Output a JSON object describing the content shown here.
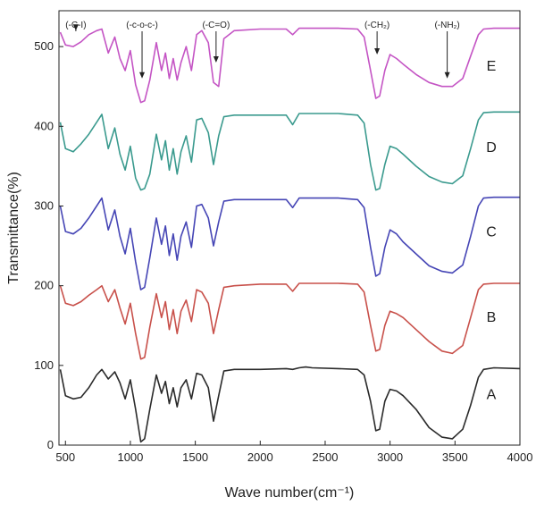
{
  "chart_data": {
    "type": "line",
    "xlabel": "Wave number(cm⁻¹)",
    "ylabel": "Transmittance(%)",
    "xlim": [
      450,
      4000
    ],
    "ylim": [
      0,
      545
    ],
    "x_ticks": [
      "500",
      "1000",
      "1500",
      "2000",
      "2500",
      "3000",
      "3500",
      "4000"
    ],
    "y_ticks": [
      "0",
      "100",
      "200",
      "300",
      "400",
      "500"
    ],
    "grid": false,
    "legend": "none",
    "annotations": [
      {
        "label": "(-C-I)",
        "x": 580,
        "y": 520
      },
      {
        "label": "(-c-o-c-)",
        "x": 1090,
        "y": 460
      },
      {
        "label": "(-C=O)",
        "x": 1660,
        "y": 480
      },
      {
        "label": "(-CH₂)",
        "x": 2900,
        "y": 490
      },
      {
        "label": "(-NH₂)",
        "x": 3440,
        "y": 460
      }
    ],
    "series": [
      {
        "name": "A",
        "color": "#2a2a2a",
        "label_x": 3780,
        "label_y": 58,
        "points": [
          [
            460,
            95
          ],
          [
            500,
            62
          ],
          [
            560,
            58
          ],
          [
            620,
            60
          ],
          [
            680,
            72
          ],
          [
            740,
            88
          ],
          [
            780,
            95
          ],
          [
            830,
            83
          ],
          [
            880,
            92
          ],
          [
            920,
            78
          ],
          [
            960,
            58
          ],
          [
            1000,
            82
          ],
          [
            1040,
            45
          ],
          [
            1080,
            4
          ],
          [
            1110,
            8
          ],
          [
            1150,
            45
          ],
          [
            1200,
            88
          ],
          [
            1240,
            65
          ],
          [
            1270,
            80
          ],
          [
            1300,
            52
          ],
          [
            1330,
            72
          ],
          [
            1360,
            48
          ],
          [
            1390,
            72
          ],
          [
            1430,
            82
          ],
          [
            1470,
            58
          ],
          [
            1510,
            90
          ],
          [
            1550,
            88
          ],
          [
            1600,
            72
          ],
          [
            1640,
            30
          ],
          [
            1680,
            62
          ],
          [
            1720,
            93
          ],
          [
            1800,
            95
          ],
          [
            2000,
            95
          ],
          [
            2200,
            96
          ],
          [
            2250,
            95
          ],
          [
            2300,
            97
          ],
          [
            2350,
            98
          ],
          [
            2400,
            97
          ],
          [
            2600,
            96
          ],
          [
            2750,
            95
          ],
          [
            2800,
            88
          ],
          [
            2850,
            55
          ],
          [
            2890,
            18
          ],
          [
            2920,
            20
          ],
          [
            2960,
            55
          ],
          [
            3000,
            70
          ],
          [
            3050,
            68
          ],
          [
            3100,
            62
          ],
          [
            3200,
            45
          ],
          [
            3300,
            22
          ],
          [
            3400,
            10
          ],
          [
            3480,
            8
          ],
          [
            3560,
            20
          ],
          [
            3620,
            50
          ],
          [
            3680,
            85
          ],
          [
            3720,
            95
          ],
          [
            3800,
            97
          ],
          [
            4000,
            96
          ]
        ]
      },
      {
        "name": "B",
        "color": "#c8504a",
        "label_x": 3780,
        "label_y": 155,
        "points": [
          [
            460,
            200
          ],
          [
            500,
            178
          ],
          [
            560,
            175
          ],
          [
            620,
            180
          ],
          [
            680,
            188
          ],
          [
            740,
            195
          ],
          [
            780,
            200
          ],
          [
            830,
            180
          ],
          [
            880,
            195
          ],
          [
            920,
            172
          ],
          [
            960,
            152
          ],
          [
            1000,
            178
          ],
          [
            1040,
            140
          ],
          [
            1080,
            108
          ],
          [
            1110,
            110
          ],
          [
            1150,
            148
          ],
          [
            1200,
            190
          ],
          [
            1240,
            160
          ],
          [
            1270,
            180
          ],
          [
            1300,
            145
          ],
          [
            1330,
            170
          ],
          [
            1360,
            140
          ],
          [
            1390,
            168
          ],
          [
            1430,
            182
          ],
          [
            1470,
            155
          ],
          [
            1510,
            195
          ],
          [
            1550,
            192
          ],
          [
            1600,
            178
          ],
          [
            1640,
            140
          ],
          [
            1680,
            170
          ],
          [
            1720,
            198
          ],
          [
            1800,
            200
          ],
          [
            2000,
            202
          ],
          [
            2200,
            202
          ],
          [
            2250,
            193
          ],
          [
            2300,
            203
          ],
          [
            2400,
            203
          ],
          [
            2600,
            203
          ],
          [
            2750,
            202
          ],
          [
            2800,
            192
          ],
          [
            2850,
            150
          ],
          [
            2890,
            118
          ],
          [
            2920,
            120
          ],
          [
            2960,
            150
          ],
          [
            3000,
            168
          ],
          [
            3050,
            165
          ],
          [
            3100,
            160
          ],
          [
            3200,
            145
          ],
          [
            3300,
            130
          ],
          [
            3400,
            118
          ],
          [
            3480,
            115
          ],
          [
            3560,
            125
          ],
          [
            3620,
            160
          ],
          [
            3680,
            195
          ],
          [
            3720,
            202
          ],
          [
            3800,
            203
          ],
          [
            4000,
            203
          ]
        ]
      },
      {
        "name": "C",
        "color": "#4545b5",
        "label_x": 3780,
        "label_y": 262,
        "points": [
          [
            460,
            300
          ],
          [
            500,
            268
          ],
          [
            560,
            265
          ],
          [
            620,
            272
          ],
          [
            680,
            285
          ],
          [
            740,
            300
          ],
          [
            780,
            310
          ],
          [
            830,
            270
          ],
          [
            880,
            295
          ],
          [
            920,
            262
          ],
          [
            960,
            240
          ],
          [
            1000,
            272
          ],
          [
            1040,
            230
          ],
          [
            1080,
            195
          ],
          [
            1110,
            198
          ],
          [
            1150,
            235
          ],
          [
            1200,
            285
          ],
          [
            1240,
            252
          ],
          [
            1270,
            275
          ],
          [
            1300,
            238
          ],
          [
            1330,
            265
          ],
          [
            1360,
            232
          ],
          [
            1390,
            262
          ],
          [
            1430,
            280
          ],
          [
            1470,
            248
          ],
          [
            1510,
            300
          ],
          [
            1550,
            302
          ],
          [
            1600,
            285
          ],
          [
            1640,
            250
          ],
          [
            1680,
            280
          ],
          [
            1720,
            306
          ],
          [
            1800,
            308
          ],
          [
            2000,
            308
          ],
          [
            2200,
            308
          ],
          [
            2250,
            298
          ],
          [
            2300,
            310
          ],
          [
            2400,
            310
          ],
          [
            2600,
            310
          ],
          [
            2750,
            308
          ],
          [
            2800,
            298
          ],
          [
            2850,
            248
          ],
          [
            2890,
            212
          ],
          [
            2920,
            215
          ],
          [
            2960,
            248
          ],
          [
            3000,
            270
          ],
          [
            3050,
            265
          ],
          [
            3100,
            255
          ],
          [
            3200,
            240
          ],
          [
            3300,
            225
          ],
          [
            3400,
            218
          ],
          [
            3480,
            216
          ],
          [
            3560,
            226
          ],
          [
            3620,
            262
          ],
          [
            3680,
            300
          ],
          [
            3720,
            310
          ],
          [
            3800,
            311
          ],
          [
            4000,
            311
          ]
        ]
      },
      {
        "name": "D",
        "color": "#3a9a8e",
        "label_x": 3780,
        "label_y": 368,
        "points": [
          [
            460,
            405
          ],
          [
            500,
            372
          ],
          [
            560,
            368
          ],
          [
            620,
            378
          ],
          [
            680,
            390
          ],
          [
            740,
            405
          ],
          [
            780,
            415
          ],
          [
            830,
            372
          ],
          [
            880,
            398
          ],
          [
            920,
            365
          ],
          [
            960,
            345
          ],
          [
            1000,
            375
          ],
          [
            1040,
            335
          ],
          [
            1080,
            320
          ],
          [
            1110,
            322
          ],
          [
            1150,
            340
          ],
          [
            1200,
            390
          ],
          [
            1240,
            358
          ],
          [
            1270,
            382
          ],
          [
            1300,
            345
          ],
          [
            1330,
            372
          ],
          [
            1360,
            340
          ],
          [
            1390,
            368
          ],
          [
            1430,
            388
          ],
          [
            1470,
            355
          ],
          [
            1510,
            408
          ],
          [
            1550,
            410
          ],
          [
            1600,
            392
          ],
          [
            1640,
            352
          ],
          [
            1680,
            388
          ],
          [
            1720,
            412
          ],
          [
            1800,
            414
          ],
          [
            2000,
            414
          ],
          [
            2200,
            414
          ],
          [
            2250,
            402
          ],
          [
            2300,
            416
          ],
          [
            2400,
            416
          ],
          [
            2600,
            416
          ],
          [
            2750,
            414
          ],
          [
            2800,
            404
          ],
          [
            2850,
            352
          ],
          [
            2890,
            320
          ],
          [
            2920,
            322
          ],
          [
            2960,
            352
          ],
          [
            3000,
            375
          ],
          [
            3050,
            372
          ],
          [
            3100,
            365
          ],
          [
            3200,
            350
          ],
          [
            3300,
            337
          ],
          [
            3400,
            330
          ],
          [
            3480,
            328
          ],
          [
            3560,
            338
          ],
          [
            3620,
            372
          ],
          [
            3680,
            408
          ],
          [
            3720,
            417
          ],
          [
            3800,
            418
          ],
          [
            4000,
            418
          ]
        ]
      },
      {
        "name": "E",
        "color": "#c454c4",
        "label_x": 3780,
        "label_y": 470,
        "points": [
          [
            460,
            518
          ],
          [
            500,
            502
          ],
          [
            560,
            500
          ],
          [
            620,
            506
          ],
          [
            680,
            515
          ],
          [
            740,
            520
          ],
          [
            780,
            522
          ],
          [
            830,
            492
          ],
          [
            880,
            512
          ],
          [
            920,
            485
          ],
          [
            960,
            470
          ],
          [
            1000,
            495
          ],
          [
            1040,
            452
          ],
          [
            1080,
            430
          ],
          [
            1110,
            432
          ],
          [
            1150,
            458
          ],
          [
            1200,
            505
          ],
          [
            1240,
            470
          ],
          [
            1270,
            492
          ],
          [
            1300,
            460
          ],
          [
            1330,
            485
          ],
          [
            1360,
            458
          ],
          [
            1390,
            480
          ],
          [
            1430,
            500
          ],
          [
            1470,
            470
          ],
          [
            1510,
            515
          ],
          [
            1550,
            520
          ],
          [
            1600,
            505
          ],
          [
            1640,
            455
          ],
          [
            1680,
            450
          ],
          [
            1720,
            510
          ],
          [
            1800,
            520
          ],
          [
            2000,
            522
          ],
          [
            2200,
            522
          ],
          [
            2250,
            515
          ],
          [
            2300,
            523
          ],
          [
            2400,
            523
          ],
          [
            2600,
            523
          ],
          [
            2750,
            522
          ],
          [
            2800,
            512
          ],
          [
            2850,
            470
          ],
          [
            2890,
            435
          ],
          [
            2920,
            438
          ],
          [
            2960,
            470
          ],
          [
            3000,
            490
          ],
          [
            3050,
            485
          ],
          [
            3100,
            478
          ],
          [
            3200,
            465
          ],
          [
            3300,
            455
          ],
          [
            3400,
            450
          ],
          [
            3480,
            450
          ],
          [
            3560,
            460
          ],
          [
            3620,
            488
          ],
          [
            3680,
            515
          ],
          [
            3720,
            522
          ],
          [
            3800,
            523
          ],
          [
            4000,
            523
          ]
        ]
      }
    ]
  }
}
